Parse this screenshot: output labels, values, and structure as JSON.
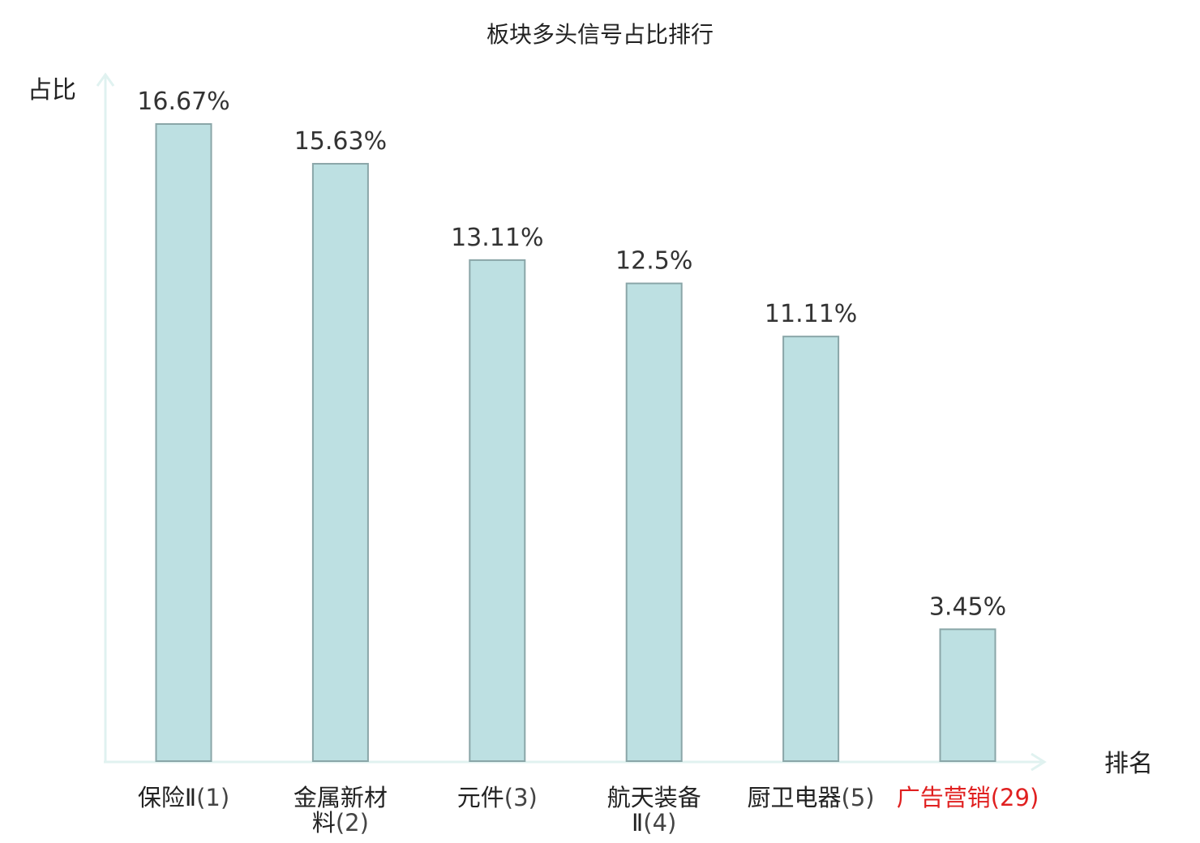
{
  "chart_data": {
    "type": "bar",
    "title": "板块多头信号占比排行",
    "ylabel": "占比",
    "xlabel": "排名",
    "ylim": [
      0,
      18
    ],
    "grid": false,
    "legend": "none",
    "bar_color": "#bde0e2",
    "bar_edge_color": "#8aa6a8",
    "axis_color": "#e0f2f0",
    "highlight_color": "#e02020",
    "categories": [
      {
        "name": "保险Ⅱ",
        "rank": "(1)",
        "highlight": false
      },
      {
        "name": "金属新材料",
        "rank": "(2)",
        "highlight": false
      },
      {
        "name": "元件",
        "rank": "(3)",
        "highlight": false
      },
      {
        "name": "航天装备Ⅱ",
        "rank": "(4)",
        "highlight": false
      },
      {
        "name": "厨卫电器",
        "rank": "(5)",
        "highlight": false
      },
      {
        "name": "广告营销",
        "rank": "(29)",
        "highlight": true
      }
    ],
    "values": [
      16.67,
      15.63,
      13.11,
      12.5,
      11.11,
      3.45
    ],
    "value_labels": [
      "16.67%",
      "15.63%",
      "13.11%",
      "12.5%",
      "11.11%",
      "3.45%"
    ]
  }
}
